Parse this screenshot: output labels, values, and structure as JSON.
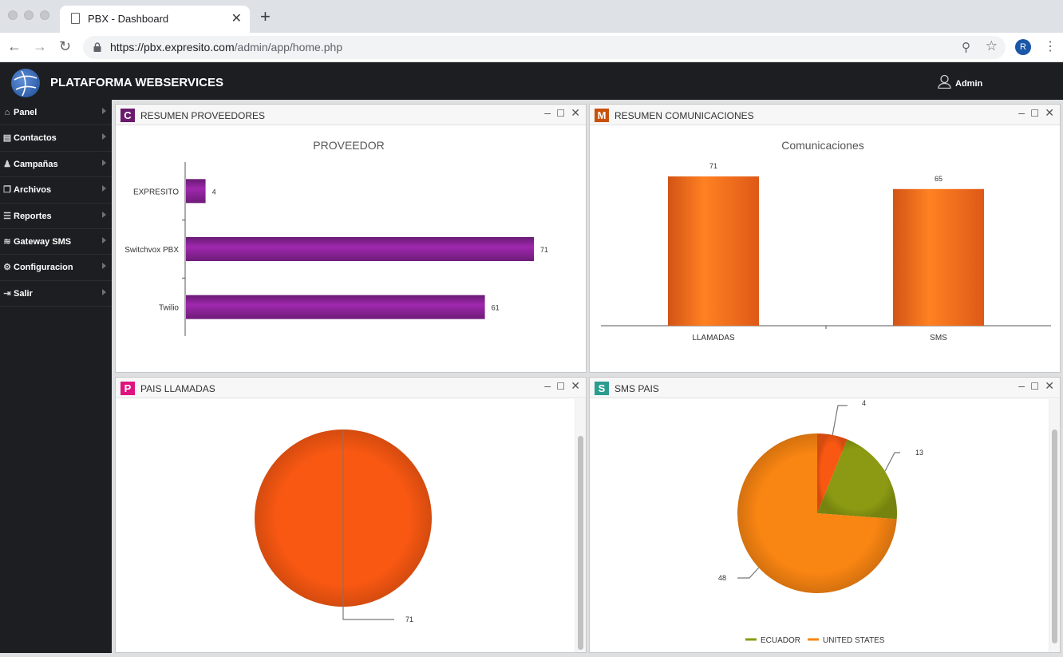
{
  "browser": {
    "tab_title": "PBX - Dashboard",
    "url_host": "https://pbx.expresito.com",
    "url_path": "/admin/app/home.php",
    "profile_initial": "R"
  },
  "header": {
    "brand": "PLATAFORMA WEBSERVICES",
    "user": "Admin"
  },
  "sidebar": {
    "items": [
      {
        "label": "Panel",
        "icon": "home-icon"
      },
      {
        "label": "Contactos",
        "icon": "address-book-icon"
      },
      {
        "label": "Campañas",
        "icon": "users-icon"
      },
      {
        "label": "Archivos",
        "icon": "files-icon"
      },
      {
        "label": "Reportes",
        "icon": "list-icon"
      },
      {
        "label": "Gateway SMS",
        "icon": "layers-icon"
      },
      {
        "label": "Configuracion",
        "icon": "gear-icon"
      },
      {
        "label": "Salir",
        "icon": "logout-icon"
      }
    ]
  },
  "panels": {
    "proveedores": {
      "badge": "C",
      "badge_color": "#6a1a6e",
      "title": "RESUMEN PROVEEDORES"
    },
    "comunicaciones": {
      "badge": "M",
      "badge_color": "#c8500a",
      "title": "RESUMEN COMUNICACIONES"
    },
    "pais_llamadas": {
      "badge": "P",
      "badge_color": "#e0127d",
      "title": "PAIS LLAMADAS"
    },
    "sms_pais": {
      "badge": "S",
      "badge_color": "#2a9d8f",
      "title": "SMS PAIS"
    }
  },
  "chart_data": [
    {
      "type": "bar",
      "orientation": "horizontal",
      "title": "PROVEEDOR",
      "categories": [
        "EXPRESITO",
        "Switchvox PBX",
        "Twilio"
      ],
      "values": [
        4,
        71,
        61
      ],
      "color": "#7a1f86",
      "xlim": [
        0,
        71
      ]
    },
    {
      "type": "bar",
      "title": "Comunicaciones",
      "categories": [
        "LLAMADAS",
        "SMS"
      ],
      "values": [
        71,
        65
      ],
      "color": "#f7631a",
      "ylim": [
        0,
        71
      ]
    },
    {
      "type": "pie",
      "title": "",
      "slices": [
        {
          "label": "",
          "value": 71,
          "color": "#f95812"
        }
      ]
    },
    {
      "type": "pie",
      "title": "",
      "slices": [
        {
          "label": "",
          "value": 4,
          "color": "#f95812"
        },
        {
          "label": "ECUADOR",
          "value": 13,
          "color": "#8b9a12"
        },
        {
          "label": "UNITED STATES",
          "value": 48,
          "color": "#f98512"
        }
      ],
      "legend": "bottom"
    }
  ]
}
